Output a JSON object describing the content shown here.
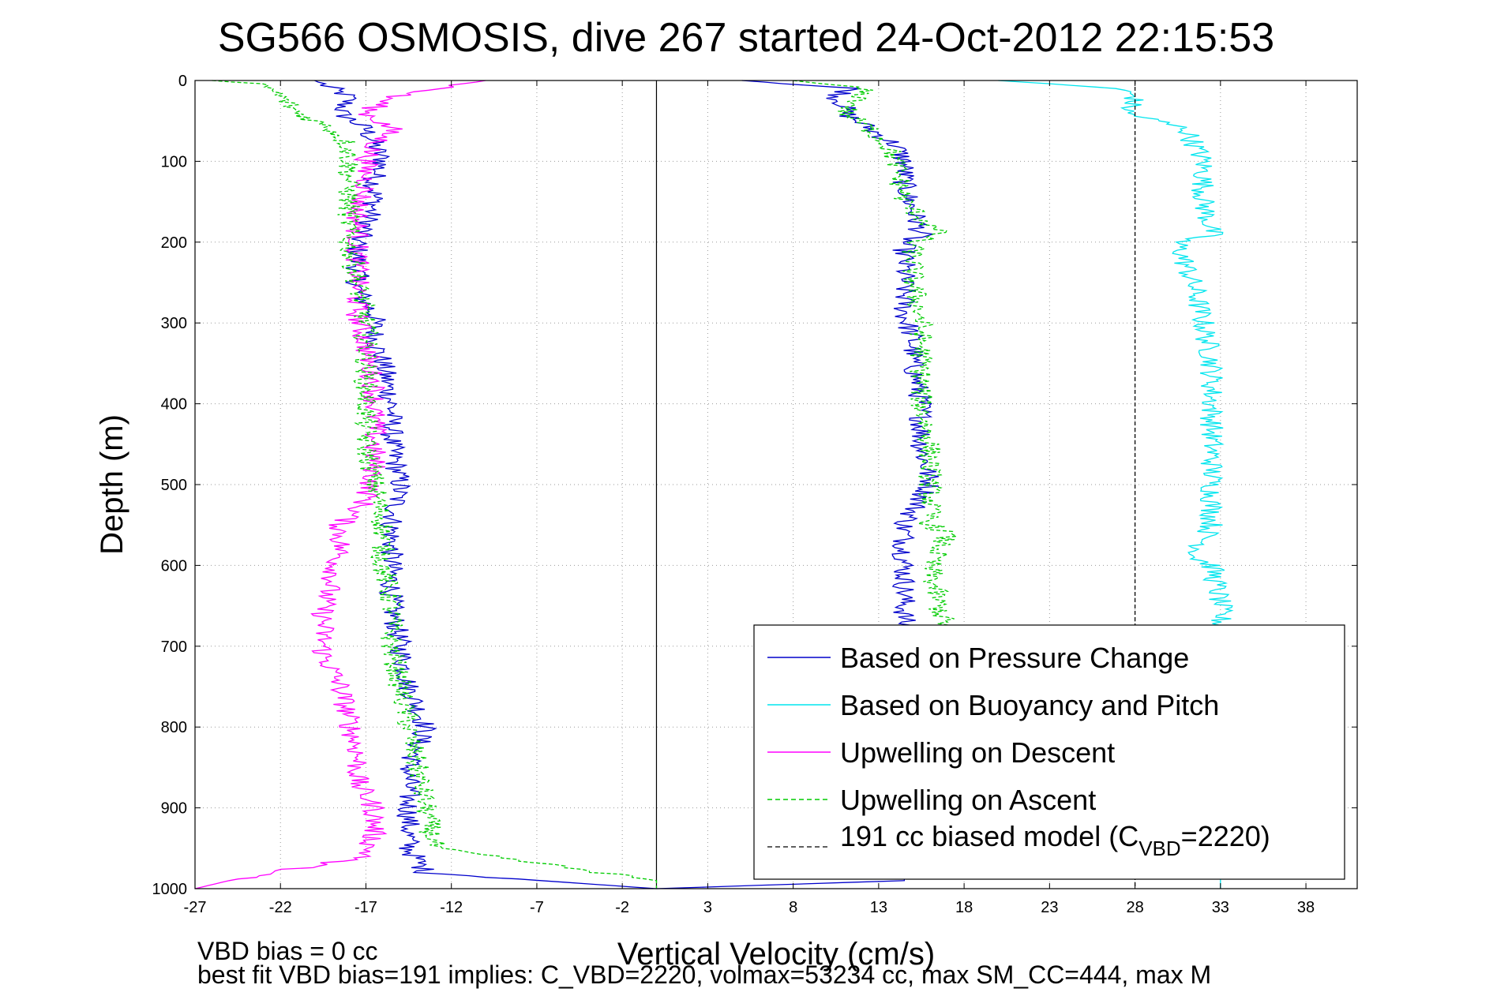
{
  "chart_data": {
    "type": "line",
    "title": "SG566 OSMOSIS, dive 267 started 24-Oct-2012 22:15:53",
    "xlabel": "Vertical Velocity (cm/s)",
    "ylabel": "Depth (m)",
    "xlim": [
      -27,
      41
    ],
    "ylim": [
      1000,
      0
    ],
    "y_reversed": true,
    "grid": true,
    "x_ticks": [
      -27,
      -22,
      -17,
      -12,
      -7,
      -2,
      3,
      8,
      13,
      18,
      23,
      28,
      33,
      38
    ],
    "x_tick_labels": [
      "-27",
      "-22",
      "-17",
      "-12",
      "-7",
      "-2",
      "3",
      "8",
      "13",
      "18",
      "23",
      "28",
      "33",
      "38"
    ],
    "y_ticks": [
      0,
      100,
      200,
      300,
      400,
      500,
      600,
      700,
      800,
      900,
      1000
    ],
    "y_tick_labels": [
      "0",
      "100",
      "200",
      "300",
      "400",
      "500",
      "600",
      "700",
      "800",
      "900",
      "1000"
    ],
    "zero_line_x": 0,
    "legend_position": "bottom-right",
    "legend": [
      {
        "label": "Based on Pressure Change",
        "color": "#0000cc",
        "style": "solid"
      },
      {
        "label": "Based on Buoyancy and Pitch",
        "color": "#00e5ee",
        "style": "solid"
      },
      {
        "label": "Upwelling on Descent",
        "color": "#ff00ff",
        "style": "solid"
      },
      {
        "label": "Upwelling on Ascent",
        "color": "#00cc00",
        "style": "dashed"
      },
      {
        "label_main": "191 cc biased model (C",
        "label_sub": "VBD",
        "label_end": "=2220)",
        "color": "#000000",
        "style": "dashed"
      }
    ],
    "series": [
      {
        "name": "Based on Pressure Change",
        "color": "#0000cc",
        "branches": [
          {
            "depth": [
              0,
              20,
              40,
              60,
              80,
              100,
              120,
              150,
              180,
              200,
              230,
              260,
              290,
              320,
              350,
              400,
              450,
              500,
              550,
              600,
              650,
              700,
              750,
              800,
              850,
              900,
              950,
              980,
              1000
            ],
            "value": [
              -20,
              -18,
              -18.5,
              -17,
              -16.5,
              -16,
              -16.5,
              -16.5,
              -17,
              -17.5,
              -17.5,
              -17.5,
              -16.5,
              -16.5,
              -16,
              -15.5,
              -15.5,
              -15,
              -15.5,
              -15.5,
              -15.5,
              -15,
              -14.5,
              -13.5,
              -14.5,
              -14.5,
              -14.5,
              -13.5,
              0
            ]
          },
          {
            "depth": [
              0,
              10,
              20,
              30,
              40,
              60,
              80,
              100,
              130,
              160,
              190,
              200,
              230,
              260,
              290,
              320,
              350,
              400,
              450,
              500,
              550,
              600,
              650,
              700,
              750,
              800,
              850,
              900,
              950,
              990,
              1000
            ],
            "value": [
              5,
              11.5,
              10.5,
              11,
              11,
              12.5,
              14,
              14.5,
              14.5,
              15,
              15.5,
              14.5,
              14.5,
              14.5,
              14.5,
              15,
              15,
              15.5,
              15.5,
              16,
              14.5,
              14.5,
              14.5,
              14.5,
              14.5,
              14.5,
              14.5,
              14.5,
              14.5,
              14.5,
              0
            ]
          }
        ]
      },
      {
        "name": "Based on Buoyancy and Pitch",
        "color": "#00e5ee",
        "branches": [
          {
            "depth": [
              0,
              10,
              20,
              40,
              60,
              80,
              100,
              150,
              190,
              200,
              230,
              260,
              300,
              350,
              400,
              450,
              500,
              550,
              590,
              600,
              650,
              670,
              700,
              800,
              900,
              1000
            ],
            "value": [
              20,
              27,
              28,
              27.5,
              31,
              31.5,
              32,
              32,
              32.5,
              30.5,
              31,
              31.5,
              32,
              32.5,
              32.5,
              32.5,
              32.5,
              32.5,
              31.5,
              32.5,
              33,
              33,
              33,
              33,
              33,
              33
            ]
          }
        ]
      },
      {
        "name": "Upwelling on Descent",
        "color": "#ff00ff",
        "branches": [
          {
            "depth": [
              0,
              20,
              40,
              60,
              80,
              100,
              130,
              160,
              190,
              220,
              250,
              290,
              330,
              380,
              430,
              480,
              520,
              550,
              580,
              620,
              650,
              680,
              710,
              750,
              790,
              830,
              870,
              900,
              930,
              960,
              990,
              1000
            ],
            "value": [
              -10,
              -15.5,
              -17,
              -15.5,
              -16.5,
              -17,
              -17,
              -17.5,
              -17.5,
              -17.5,
              -17.5,
              -17.5,
              -17,
              -16.5,
              -16.5,
              -16.5,
              -17,
              -18.5,
              -18.5,
              -19,
              -19.5,
              -19.5,
              -19.5,
              -18.5,
              -18,
              -17.5,
              -17.5,
              -16.5,
              -16.5,
              -17,
              -25,
              -27
            ]
          }
        ]
      },
      {
        "name": "Upwelling on Ascent",
        "color": "#00cc00",
        "dashed": true,
        "branches": [
          {
            "depth": [
              0,
              5,
              20,
              40,
              60,
              80,
              100,
              150,
              200,
              250,
              300,
              350,
              400,
              450,
              500,
              550,
              600,
              650,
              700,
              750,
              800,
              850,
              900,
              950,
              990,
              1000
            ],
            "value": [
              -26,
              -23,
              -22,
              -21,
              -19,
              -18,
              -18,
              -18,
              -18,
              -17.5,
              -17,
              -17,
              -17,
              -17,
              -16.5,
              -16,
              -16,
              -15.5,
              -15.5,
              -15,
              -14.5,
              -14,
              -13.5,
              -13,
              0,
              0
            ]
          },
          {
            "depth": [
              0,
              10,
              20,
              40,
              60,
              80,
              100,
              150,
              190,
              200,
              250,
              300,
              350,
              400,
              450,
              500,
              550,
              560,
              600,
              650,
              680,
              700
            ],
            "value": [
              8,
              12,
              12,
              11,
              12.5,
              13.5,
              14,
              14.5,
              16.5,
              15,
              15,
              15.5,
              15.5,
              15.5,
              16,
              16,
              16,
              17,
              16,
              16.5,
              17,
              17
            ]
          }
        ]
      },
      {
        "name": "191 cc biased model (C_VBD=2220)",
        "color": "#000000",
        "dashed": true,
        "branches": [
          {
            "depth": [
              0,
              1000
            ],
            "value": [
              28,
              28
            ]
          }
        ]
      }
    ]
  },
  "footer": {
    "line1": "VBD bias = 0 cc",
    "line2": "best fit VBD bias=191 implies: C_VBD=2220, volmax=53234 cc, max SM_CC=444, max M"
  }
}
